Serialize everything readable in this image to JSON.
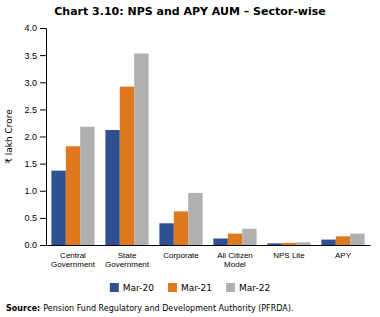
{
  "chart_data": {
    "type": "bar",
    "title": "Chart 3.10: NPS and APY AUM – Sector-wise",
    "categories": [
      "Central\nGovernment",
      "State\nGovernment",
      "Corporate",
      "All Citizen\nModel",
      "NPS Lite",
      "APY"
    ],
    "series": [
      {
        "name": "Mar-20",
        "color": "#2e5090",
        "values": [
          1.37,
          2.12,
          0.4,
          0.12,
          0.03,
          0.1
        ]
      },
      {
        "name": "Mar-21",
        "color": "#e07820",
        "values": [
          1.82,
          2.92,
          0.62,
          0.21,
          0.04,
          0.16
        ]
      },
      {
        "name": "Mar-22",
        "color": "#b0b0b0",
        "values": [
          2.18,
          3.53,
          0.96,
          0.3,
          0.05,
          0.21
        ]
      }
    ],
    "ylabel": "₹ lakh Crore",
    "ylim": [
      0,
      4.0
    ],
    "yticks": [
      {
        "value": 0,
        "label": "0.0"
      },
      0.5,
      {
        "value": 1,
        "label": "1.0"
      },
      1.5,
      {
        "value": 2,
        "label": "2.0"
      },
      2.5,
      {
        "value": 3,
        "label": "3.0"
      },
      3.5,
      {
        "value": 4,
        "label": "4.0"
      }
    ],
    "annotations": [
      "Source:",
      "Pension Fund Regulatory and Development Authority (PFRDA)."
    ],
    "legend": "bottom",
    "grid": false
  }
}
